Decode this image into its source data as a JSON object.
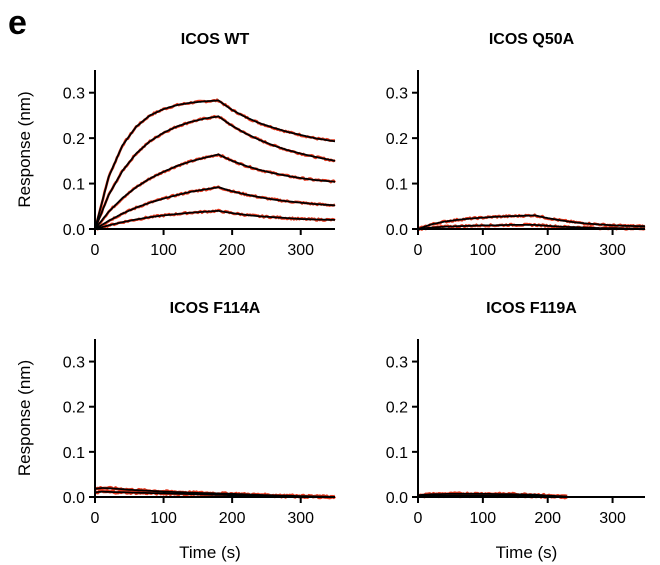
{
  "panel_label": "e",
  "colors": {
    "data": "#e8391e",
    "fit": "#000000"
  },
  "chart_data": [
    {
      "type": "line",
      "title": "ICOS WT",
      "xlabel": "",
      "ylabel": "Response (nm)",
      "xlim": [
        0,
        350
      ],
      "ylim": [
        0,
        0.35
      ],
      "xticks": [
        0,
        100,
        200,
        300
      ],
      "yticks": [
        0.0,
        0.1,
        0.2,
        0.3
      ],
      "ytick_labels": [
        "0.0",
        "0.1",
        "0.2",
        "0.3"
      ],
      "association_end_s": 180,
      "series": [
        {
          "x": [
            0,
            20,
            40,
            60,
            80,
            100,
            120,
            140,
            160,
            180,
            200,
            220,
            240,
            260,
            280,
            300,
            320,
            350
          ],
          "y": [
            0,
            0.115,
            0.184,
            0.225,
            0.25,
            0.264,
            0.273,
            0.278,
            0.281,
            0.283,
            0.262,
            0.246,
            0.233,
            0.223,
            0.214,
            0.207,
            0.2,
            0.193
          ]
        },
        {
          "x": [
            0,
            20,
            40,
            60,
            80,
            100,
            120,
            140,
            160,
            180,
            200,
            220,
            240,
            260,
            280,
            300,
            320,
            350
          ],
          "y": [
            0,
            0.075,
            0.128,
            0.166,
            0.193,
            0.212,
            0.226,
            0.236,
            0.243,
            0.248,
            0.227,
            0.21,
            0.196,
            0.184,
            0.174,
            0.166,
            0.159,
            0.15
          ]
        },
        {
          "x": [
            0,
            20,
            40,
            60,
            80,
            100,
            120,
            140,
            160,
            180,
            200,
            220,
            240,
            260,
            280,
            300,
            320,
            350
          ],
          "y": [
            0,
            0.038,
            0.068,
            0.092,
            0.111,
            0.126,
            0.139,
            0.149,
            0.157,
            0.164,
            0.15,
            0.139,
            0.13,
            0.123,
            0.117,
            0.112,
            0.108,
            0.104
          ]
        },
        {
          "x": [
            0,
            20,
            40,
            60,
            80,
            100,
            120,
            140,
            160,
            180,
            200,
            220,
            240,
            260,
            280,
            300,
            320,
            350
          ],
          "y": [
            0,
            0.018,
            0.034,
            0.047,
            0.058,
            0.067,
            0.075,
            0.082,
            0.087,
            0.092,
            0.083,
            0.076,
            0.07,
            0.065,
            0.061,
            0.058,
            0.055,
            0.052
          ]
        },
        {
          "x": [
            0,
            20,
            40,
            60,
            80,
            100,
            120,
            140,
            160,
            180,
            200,
            220,
            240,
            260,
            280,
            300,
            320,
            350
          ],
          "y": [
            0,
            0.008,
            0.015,
            0.021,
            0.026,
            0.03,
            0.033,
            0.036,
            0.038,
            0.04,
            0.035,
            0.031,
            0.028,
            0.026,
            0.024,
            0.022,
            0.021,
            0.02
          ]
        }
      ]
    },
    {
      "type": "line",
      "title": "ICOS Q50A",
      "xlabel": "",
      "ylabel": "",
      "xlim": [
        0,
        350
      ],
      "ylim": [
        0,
        0.35
      ],
      "xticks": [
        0,
        100,
        200,
        300
      ],
      "yticks": [
        0.0,
        0.1,
        0.2,
        0.3
      ],
      "ytick_labels": [
        "0.0",
        "0.1",
        "0.2",
        "0.3"
      ],
      "association_end_s": 180,
      "series": [
        {
          "x": [
            0,
            20,
            40,
            60,
            80,
            100,
            120,
            140,
            160,
            180,
            200,
            220,
            240,
            260,
            280,
            300,
            320,
            350
          ],
          "y": [
            0,
            0.01,
            0.016,
            0.02,
            0.023,
            0.025,
            0.027,
            0.028,
            0.029,
            0.03,
            0.024,
            0.019,
            0.015,
            0.012,
            0.01,
            0.008,
            0.007,
            0.006
          ]
        },
        {
          "x": [
            0,
            20,
            40,
            60,
            80,
            100,
            120,
            140,
            160,
            180,
            200,
            220,
            240,
            260,
            280,
            300,
            320,
            350
          ],
          "y": [
            0,
            0.003,
            0.005,
            0.006,
            0.007,
            0.008,
            0.008,
            0.009,
            0.009,
            0.009,
            0.007,
            0.005,
            0.004,
            0.003,
            0.002,
            0.002,
            0.001,
            0.001
          ]
        }
      ]
    },
    {
      "type": "line",
      "title": "ICOS F114A",
      "xlabel": "Time (s)",
      "ylabel": "Response (nm)",
      "xlim": [
        0,
        350
      ],
      "ylim": [
        0,
        0.35
      ],
      "xticks": [
        0,
        100,
        200,
        300
      ],
      "yticks": [
        0.0,
        0.1,
        0.2,
        0.3
      ],
      "ytick_labels": [
        "0.0",
        "0.1",
        "0.2",
        "0.3"
      ],
      "association_end_s": 180,
      "series": [
        {
          "x": [
            0,
            10,
            25,
            50,
            100,
            150,
            200,
            250,
            300,
            350
          ],
          "y": [
            0.018,
            0.02,
            0.019,
            0.016,
            0.012,
            0.009,
            0.007,
            0.004,
            0.002,
            0.0
          ]
        },
        {
          "x": [
            0,
            10,
            25,
            50,
            100,
            150,
            200,
            250,
            300,
            350
          ],
          "y": [
            0.01,
            0.012,
            0.011,
            0.01,
            0.008,
            0.006,
            0.004,
            0.003,
            0.001,
            0.0
          ]
        }
      ]
    },
    {
      "type": "line",
      "title": "ICOS F119A",
      "xlabel": "Time (s)",
      "ylabel": "",
      "xlim": [
        0,
        350
      ],
      "ylim": [
        0,
        0.35
      ],
      "xticks": [
        0,
        100,
        200,
        300
      ],
      "yticks": [
        0.0,
        0.1,
        0.2,
        0.3
      ],
      "ytick_labels": [
        "0.0",
        "0.1",
        "0.2",
        "0.3"
      ],
      "association_end_s": 180,
      "series": [
        {
          "x": [
            0,
            20,
            50,
            100,
            150,
            180,
            200,
            230
          ],
          "y": [
            0.004,
            0.006,
            0.007,
            0.007,
            0.006,
            0.005,
            0.003,
            0.001
          ]
        },
        {
          "x": [
            0,
            20,
            50,
            100,
            150,
            180,
            200,
            230
          ],
          "y": [
            0.002,
            0.003,
            0.003,
            0.003,
            0.003,
            0.002,
            0.001,
            0.0
          ]
        }
      ]
    }
  ]
}
